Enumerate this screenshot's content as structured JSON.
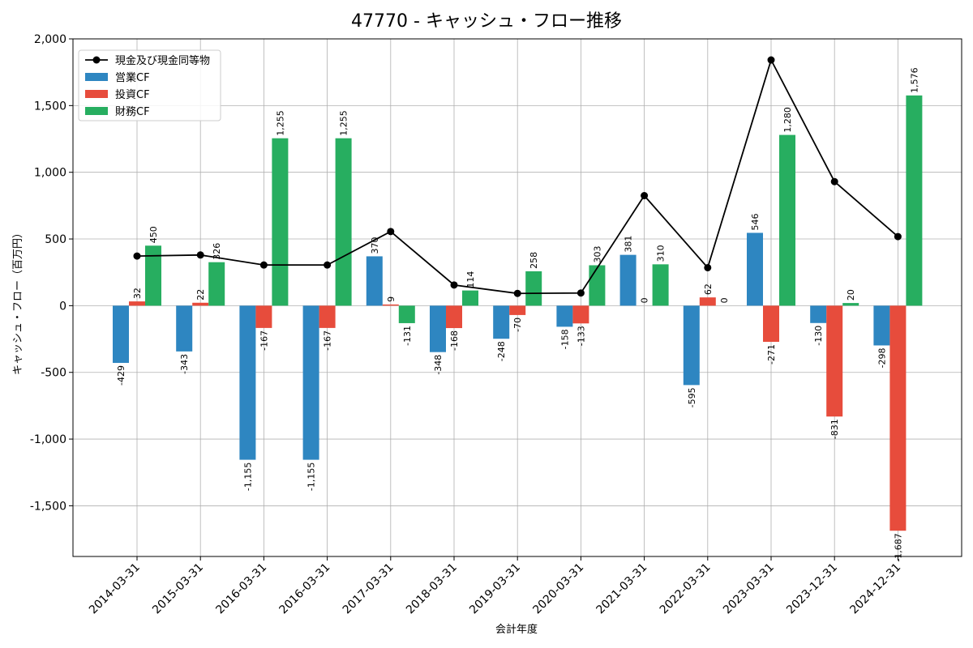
{
  "chart_data": {
    "type": "bar",
    "title": "47770 - キャッシュ・フロー推移",
    "xlabel": "会計年度",
    "ylabel": "キャッシュ・フロー（百万円）",
    "ylim": [
      -1880,
      2000
    ],
    "yticks": [
      -1500,
      -1000,
      -500,
      0,
      500,
      1000,
      1500,
      2000
    ],
    "ytick_labels": [
      "-1,500",
      "-1,000",
      "-500",
      "0",
      "500",
      "1,000",
      "1,500",
      "2,000"
    ],
    "grid": true,
    "legend_position": "top-left",
    "categories": [
      "2014-03-31",
      "2015-03-31",
      "2016-03-31",
      "2016-03-31",
      "2017-03-31",
      "2018-03-31",
      "2019-03-31",
      "2020-03-31",
      "2021-03-31",
      "2022-03-31",
      "2023-03-31",
      "2023-12-31",
      "2024-12-31"
    ],
    "series": [
      {
        "name": "営業CF",
        "kind": "bar",
        "color": "#2e86c1",
        "values": [
          -429,
          -343,
          -1155,
          -1155,
          370,
          -348,
          -248,
          -158,
          381,
          -595,
          546,
          -130,
          -298
        ],
        "labels": [
          "-429",
          "-343",
          "-1,155",
          "-1,155",
          "370",
          "-348",
          "-248",
          "-158",
          "381",
          "-595",
          "546",
          "-130",
          "-298"
        ]
      },
      {
        "name": "投資CF",
        "kind": "bar",
        "color": "#e74c3c",
        "values": [
          32,
          22,
          -167,
          -167,
          9,
          -168,
          -70,
          -133,
          0,
          62,
          -271,
          -831,
          -1687
        ],
        "labels": [
          "32",
          "22",
          "-167",
          "-167",
          "9",
          "-168",
          "-70",
          "-133",
          "0",
          "62",
          "-271",
          "-831",
          "-1,687"
        ]
      },
      {
        "name": "財務CF",
        "kind": "bar",
        "color": "#27ae60",
        "values": [
          450,
          326,
          1255,
          1255,
          -131,
          114,
          258,
          303,
          310,
          0,
          1280,
          20,
          1576
        ],
        "labels": [
          "450",
          "326",
          "1,255",
          "1,255",
          "-131",
          "114",
          "258",
          "303",
          "310",
          "0",
          "1,280",
          "20",
          "1,576"
        ]
      },
      {
        "name": "現金及び現金同等物",
        "kind": "line",
        "color": "#000000",
        "values": [
          372,
          380,
          305,
          305,
          556,
          155,
          92,
          95,
          825,
          285,
          1842,
          930,
          518
        ]
      }
    ]
  }
}
